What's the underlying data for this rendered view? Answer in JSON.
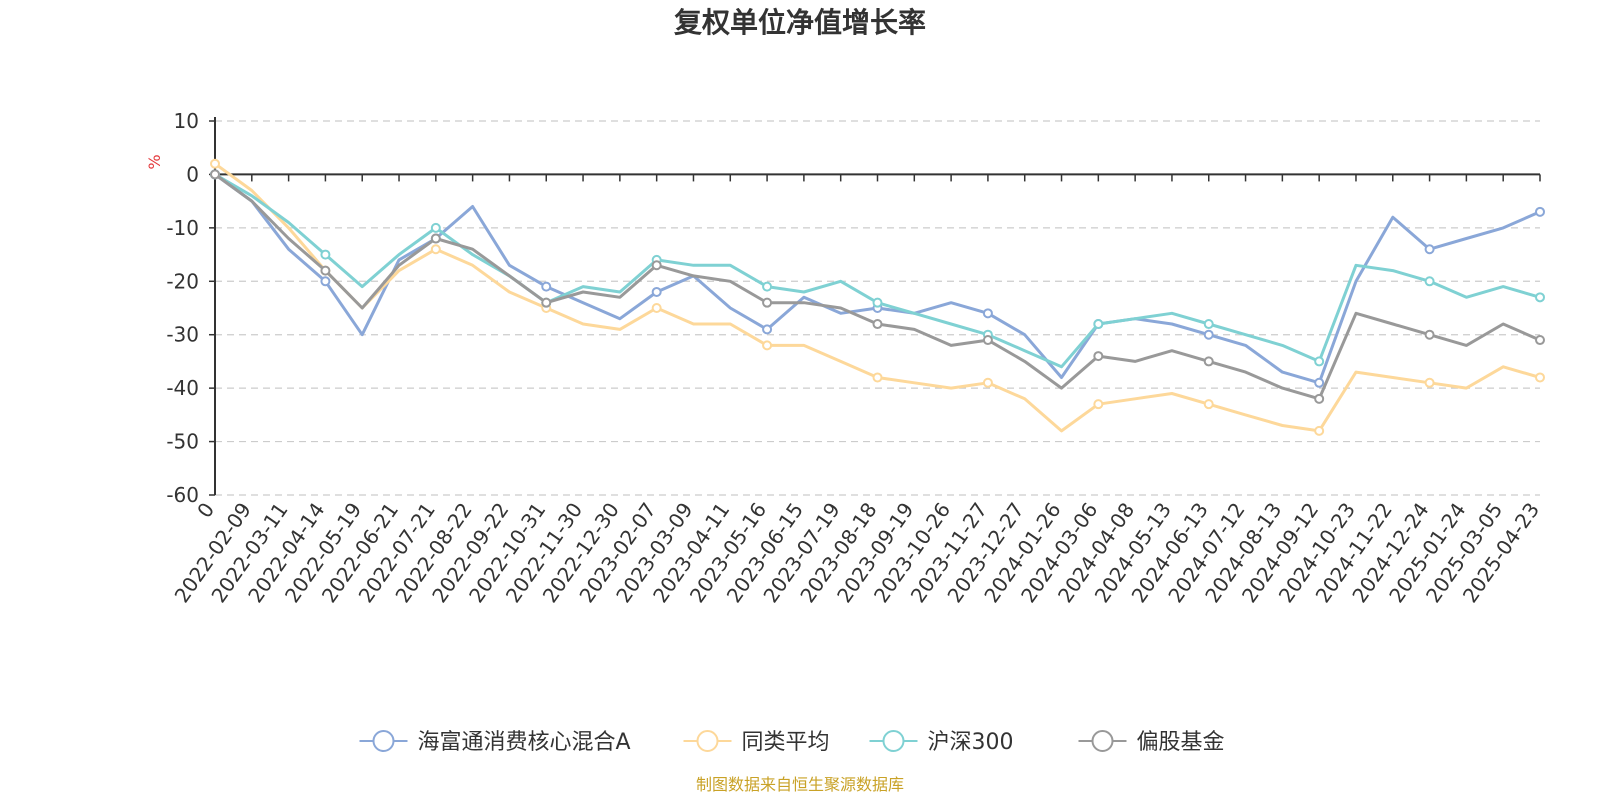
{
  "chart_data": {
    "type": "line",
    "title": "复权单位净值增长率",
    "ylabel": "%",
    "ylim": [
      -60,
      10
    ],
    "yticks": [
      10,
      0,
      -10,
      -20,
      -30,
      -40,
      -50,
      -60
    ],
    "grid": true,
    "legend_position": "bottom",
    "source": "制图数据来自恒生聚源数据库",
    "x": [
      "0",
      "2022-02-09",
      "2022-03-11",
      "2022-04-14",
      "2022-05-19",
      "2022-06-21",
      "2022-07-21",
      "2022-08-22",
      "2022-09-22",
      "2022-10-31",
      "2022-11-30",
      "2022-12-30",
      "2023-02-07",
      "2023-03-09",
      "2023-04-11",
      "2023-05-16",
      "2023-06-15",
      "2023-07-19",
      "2023-08-18",
      "2023-09-19",
      "2023-10-26",
      "2023-11-27",
      "2023-12-27",
      "2024-01-26",
      "2024-03-06",
      "2024-04-08",
      "2024-05-13",
      "2024-06-13",
      "2024-07-12",
      "2024-08-13",
      "2024-09-12",
      "2024-10-23",
      "2024-11-22",
      "2024-12-24",
      "2025-01-24",
      "2025-03-05",
      "2025-04-23"
    ],
    "series": [
      {
        "name": "海富通消费核心混合A",
        "color": "#8aa7d8",
        "values": [
          0,
          -5,
          -14,
          -20,
          -30,
          -16,
          -12,
          -6,
          -17,
          -21,
          -24,
          -27,
          -22,
          -19,
          -25,
          -29,
          -23,
          -26,
          -25,
          -26,
          -24,
          -26,
          -30,
          -38,
          -28,
          -27,
          -28,
          -30,
          -32,
          -37,
          -39,
          -20,
          -8,
          -14,
          -12,
          -10,
          -7
        ]
      },
      {
        "name": "同类平均",
        "color": "#fdd89a",
        "values": [
          2,
          -3,
          -10,
          -18,
          -25,
          -18,
          -14,
          -17,
          -22,
          -25,
          -28,
          -29,
          -25,
          -28,
          -28,
          -32,
          -32,
          -35,
          -38,
          -39,
          -40,
          -39,
          -42,
          -48,
          -43,
          -42,
          -41,
          -43,
          -45,
          -47,
          -48,
          -37,
          -38,
          -39,
          -40,
          -36,
          -38
        ]
      },
      {
        "name": "沪深300",
        "color": "#7fd1d3",
        "values": [
          0,
          -4,
          -9,
          -15,
          -21,
          -15,
          -10,
          -15,
          -19,
          -24,
          -21,
          -22,
          -16,
          -17,
          -17,
          -21,
          -22,
          -20,
          -24,
          -26,
          -28,
          -30,
          -33,
          -36,
          -28,
          -27,
          -26,
          -28,
          -30,
          -32,
          -35,
          -17,
          -18,
          -20,
          -23,
          -21,
          -23
        ]
      },
      {
        "name": "偏股基金",
        "color": "#999999",
        "values": [
          0,
          -5,
          -12,
          -18,
          -25,
          -17,
          -12,
          -14,
          -19,
          -24,
          -22,
          -23,
          -17,
          -19,
          -20,
          -24,
          -24,
          -25,
          -28,
          -29,
          -32,
          -31,
          -35,
          -40,
          -34,
          -35,
          -33,
          -35,
          -37,
          -40,
          -42,
          -26,
          -28,
          -30,
          -32,
          -28,
          -31
        ]
      }
    ]
  }
}
